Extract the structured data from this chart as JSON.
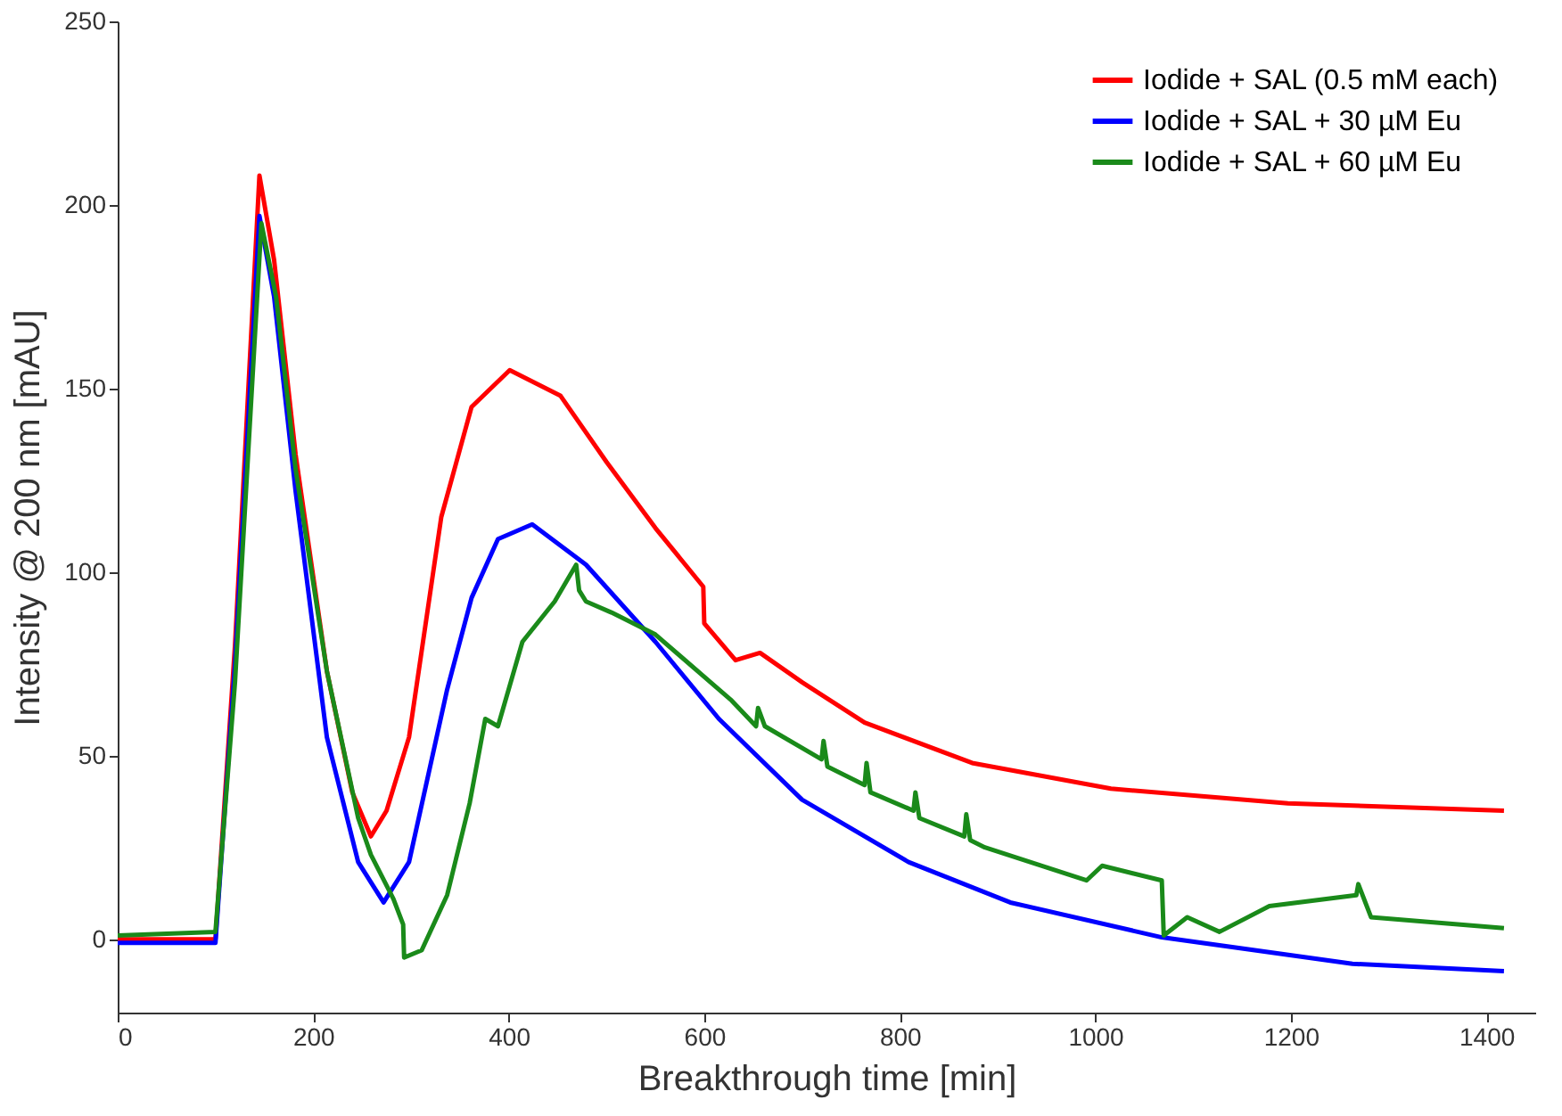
{
  "chart_data": {
    "type": "line",
    "xlabel": "Breakthrough time [min]",
    "ylabel": "Intensity @ 200 nm [mAU]",
    "xlim": [
      0,
      1450
    ],
    "xticks": [
      0,
      200,
      400,
      600,
      800,
      1000,
      1200,
      1400
    ],
    "ylim": [
      -20,
      250
    ],
    "yticks": [
      0,
      50,
      100,
      150,
      200,
      250
    ],
    "grid": false,
    "legend": "top right",
    "marker": "none",
    "line_style": "solid",
    "series": [
      {
        "name": "Iodide + SAL (0.5 mM each)",
        "color": "#ff0000",
        "x": [
          0,
          100,
          120,
          145,
          160,
          182,
          214,
          240,
          259,
          275,
          298,
          331,
          362,
          401,
          453,
          500,
          550,
          599,
          600,
          632,
          657,
          700,
          764,
          874,
          1016,
          1197,
          1418
        ],
        "values": [
          0,
          0,
          80,
          208,
          185,
          132,
          73,
          40,
          28,
          35,
          55,
          115,
          145,
          155,
          148,
          130,
          112,
          96,
          86,
          76,
          78,
          70,
          59,
          48,
          41,
          37,
          35
        ]
      },
      {
        "name": "Iodide + SAL + 30 µM Eu",
        "color": "#0000ff",
        "x": [
          0,
          100,
          120,
          145,
          160,
          182,
          214,
          246,
          272,
          298,
          337,
          362,
          389,
          424,
          479,
          550,
          615,
          700,
          809,
          913,
          1068,
          1263,
          1418
        ],
        "values": [
          -1,
          -1,
          75,
          197,
          175,
          122,
          55,
          21,
          10,
          21,
          68,
          93,
          109,
          113,
          102,
          81,
          60,
          38,
          21,
          10,
          0.5,
          -6.7,
          -8.7
        ]
      },
      {
        "name": "Iodide + SAL + 60 µM Eu",
        "color": "#1a8a1a",
        "x": [
          0,
          100,
          120,
          147,
          162,
          182,
          214,
          246,
          259,
          282,
          292,
          293,
          311,
          337,
          360,
          376,
          389,
          414,
          447,
          469,
          472,
          479,
          505,
          550,
          628,
          653,
          655,
          662,
          720,
          722,
          726,
          764,
          766,
          770,
          814,
          816,
          820,
          866,
          868,
          872,
          887,
          991,
          1007,
          1068,
          1070,
          1094,
          1127,
          1178,
          1267,
          1269,
          1282,
          1418
        ],
        "values": [
          1,
          2,
          70,
          195,
          175,
          128,
          73,
          33,
          23,
          11,
          4,
          -5,
          -3,
          12,
          37,
          60,
          58,
          81,
          92,
          102,
          95,
          92,
          89,
          83,
          65,
          58,
          63,
          58,
          49,
          54,
          47,
          42,
          48,
          40,
          35,
          40,
          33,
          28,
          34,
          27,
          25,
          16,
          20,
          16,
          1,
          6,
          2,
          9,
          12,
          15,
          6,
          3
        ]
      }
    ]
  }
}
